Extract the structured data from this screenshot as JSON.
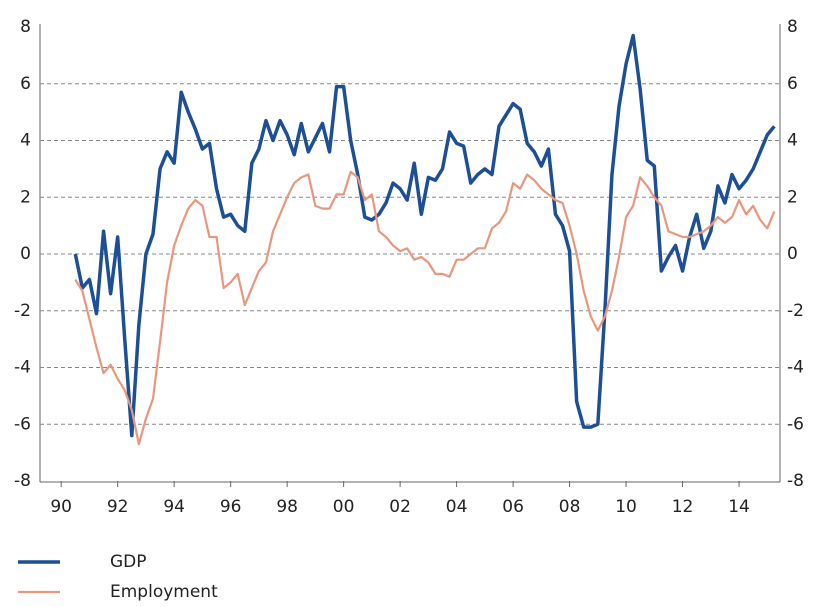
{
  "chart_data": {
    "type": "line",
    "x": [
      1990.5,
      1990.75,
      1991,
      1991.25,
      1991.5,
      1991.75,
      1992,
      1992.25,
      1992.5,
      1992.75,
      1993,
      1993.25,
      1993.5,
      1993.75,
      1994,
      1994.25,
      1994.5,
      1994.75,
      1995,
      1995.25,
      1995.5,
      1995.75,
      1996,
      1996.25,
      1996.5,
      1996.75,
      1997,
      1997.25,
      1997.5,
      1997.75,
      1998,
      1998.25,
      1998.5,
      1998.75,
      1999,
      1999.25,
      1999.5,
      1999.75,
      2000,
      2000.25,
      2000.5,
      2000.75,
      2001,
      2001.25,
      2001.5,
      2001.75,
      2002,
      2002.25,
      2002.5,
      2002.75,
      2003,
      2003.25,
      2003.5,
      2003.75,
      2004,
      2004.25,
      2004.5,
      2004.75,
      2005,
      2005.25,
      2005.5,
      2005.75,
      2006,
      2006.25,
      2006.5,
      2006.75,
      2007,
      2007.25,
      2007.5,
      2007.75,
      2008,
      2008.25,
      2008.5,
      2008.75,
      2009,
      2009.25,
      2009.5,
      2009.75,
      2010,
      2010.25,
      2010.5,
      2010.75,
      2011,
      2011.25,
      2011.5,
      2011.75,
      2012,
      2012.25,
      2012.5,
      2012.75,
      2013,
      2013.25,
      2013.5,
      2013.75,
      2014,
      2014.25,
      2014.5,
      2014.75,
      2015,
      2015.25
    ],
    "series": [
      {
        "name": "GDP",
        "color": "#1d4f96",
        "width": 3.5,
        "values": [
          0,
          -1.2,
          -0.9,
          -2.1,
          0.8,
          -1.4,
          0.6,
          -3.0,
          -6.4,
          -2.5,
          0,
          0.7,
          3.0,
          3.6,
          3.2,
          5.7,
          5.0,
          4.4,
          3.7,
          3.9,
          2.3,
          1.3,
          1.4,
          1.0,
          0.8,
          3.2,
          3.7,
          4.7,
          4.0,
          4.7,
          4.2,
          3.5,
          4.6,
          3.6,
          4.1,
          4.6,
          3.6,
          5.9,
          5.9,
          4.0,
          2.8,
          1.3,
          1.2,
          1.4,
          1.8,
          2.5,
          2.3,
          1.9,
          3.2,
          1.4,
          2.7,
          2.6,
          3.0,
          4.3,
          3.9,
          3.8,
          2.5,
          2.8,
          3.0,
          2.8,
          4.5,
          4.9,
          5.3,
          5.1,
          3.9,
          3.6,
          3.1,
          3.7,
          1.4,
          1.0,
          0.1,
          -5.2,
          -6.1,
          -6.1,
          -6.0,
          -2.0,
          2.8,
          5.2,
          6.7,
          7.7,
          5.8,
          3.3,
          3.1,
          -0.6,
          -0.1,
          0.3,
          -0.6,
          0.6,
          1.4,
          0.2,
          0.8,
          2.4,
          1.8,
          2.8,
          2.3,
          2.6,
          3.0,
          3.6,
          4.2,
          4.5
        ]
      },
      {
        "name": "Employment",
        "color": "#e9977c",
        "width": 2.2,
        "values": [
          -0.9,
          -1.3,
          -2.3,
          -3.3,
          -4.2,
          -3.9,
          -4.4,
          -4.8,
          -5.5,
          -6.7,
          -5.8,
          -5.1,
          -3.1,
          -1.0,
          0.3,
          1.0,
          1.6,
          1.9,
          1.7,
          0.6,
          0.6,
          -1.2,
          -1.0,
          -0.7,
          -1.8,
          -1.2,
          -0.6,
          -0.3,
          0.8,
          1.4,
          2.0,
          2.5,
          2.7,
          2.8,
          1.7,
          1.6,
          1.6,
          2.1,
          2.1,
          2.9,
          2.7,
          1.9,
          2.1,
          0.8,
          0.6,
          0.3,
          0.1,
          0.2,
          -0.2,
          -0.1,
          -0.3,
          -0.7,
          -0.7,
          -0.8,
          -0.2,
          -0.2,
          0.0,
          0.2,
          0.2,
          0.9,
          1.1,
          1.5,
          2.5,
          2.3,
          2.8,
          2.6,
          2.3,
          2.1,
          1.9,
          1.8,
          1.0,
          0.0,
          -1.3,
          -2.2,
          -2.7,
          -2.2,
          -1.3,
          -0.1,
          1.3,
          1.7,
          2.7,
          2.4,
          2.0,
          1.7,
          0.8,
          0.7,
          0.6,
          0.6,
          0.7,
          0.8,
          1.0,
          1.3,
          1.1,
          1.3,
          1.9,
          1.4,
          1.7,
          1.2,
          0.9,
          1.5
        ]
      }
    ],
    "xlim": [
      1989.25,
      2015.45
    ],
    "xticks": [
      {
        "value": 1990,
        "label": "90"
      },
      {
        "value": 1992,
        "label": "92"
      },
      {
        "value": 1994,
        "label": "94"
      },
      {
        "value": 1996,
        "label": "96"
      },
      {
        "value": 1998,
        "label": "98"
      },
      {
        "value": 2000,
        "label": "00"
      },
      {
        "value": 2002,
        "label": "02"
      },
      {
        "value": 2004,
        "label": "04"
      },
      {
        "value": 2006,
        "label": "06"
      },
      {
        "value": 2008,
        "label": "08"
      },
      {
        "value": 2010,
        "label": "10"
      },
      {
        "value": 2012,
        "label": "12"
      },
      {
        "value": 2014,
        "label": "14"
      }
    ],
    "ylim": [
      -8,
      8
    ],
    "yticks": [
      -8,
      -6,
      -4,
      -2,
      0,
      2,
      4,
      6,
      8
    ],
    "y2lim": [
      -8,
      8
    ],
    "y2ticks": [
      -8,
      -6,
      -4,
      -2,
      0,
      2,
      4,
      6,
      8
    ],
    "grid": true
  }
}
